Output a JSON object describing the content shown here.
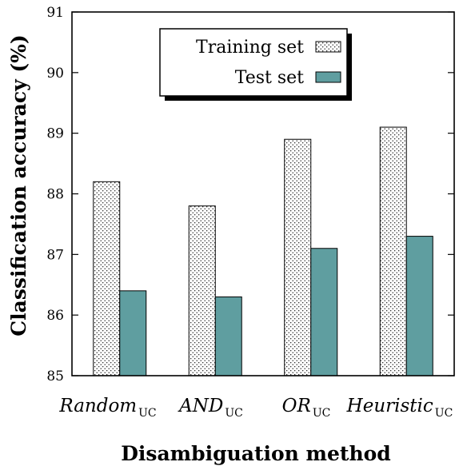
{
  "chart_data": {
    "type": "bar",
    "xlabel": "Disambiguation method",
    "ylabel": "Classification accuracy (%)",
    "ylim": [
      85,
      91
    ],
    "yticks": [
      85,
      86,
      87,
      88,
      89,
      90,
      91
    ],
    "categories": [
      {
        "name": "Random",
        "sub": "UC"
      },
      {
        "name": "AND",
        "sub": "UC"
      },
      {
        "name": "OR",
        "sub": "UC"
      },
      {
        "name": "Heuristic",
        "sub": "UC"
      }
    ],
    "series": [
      {
        "name": "Training set",
        "values": [
          88.2,
          87.8,
          88.9,
          89.1
        ],
        "pattern": "dotted",
        "color": "#ffffff"
      },
      {
        "name": "Test set",
        "values": [
          86.4,
          86.3,
          87.1,
          87.3
        ],
        "pattern": "solid",
        "color": "#5f9ea0"
      }
    ],
    "legend_position": "top-center",
    "grid": false
  }
}
